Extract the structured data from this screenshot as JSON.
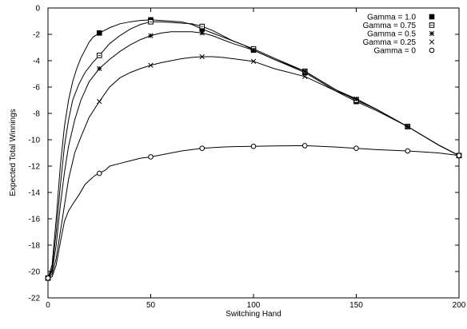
{
  "chart_data": {
    "type": "line",
    "xlabel": "Switching Hand",
    "ylabel": "Expected Total Winnings",
    "xlim": [
      0,
      200
    ],
    "ylim": [
      -22,
      0
    ],
    "x_ticks": [
      0,
      50,
      100,
      150,
      200
    ],
    "y_ticks": [
      0,
      -2,
      -4,
      -6,
      -8,
      -10,
      -12,
      -14,
      -16,
      -18,
      -20,
      -22
    ],
    "grid": false,
    "legend_position": "top-right",
    "series": [
      {
        "name": "Gamma = 1.0",
        "marker": "filled-square",
        "line": [
          [
            0,
            -20.5
          ],
          [
            2,
            -19.5
          ],
          [
            4,
            -16
          ],
          [
            6,
            -12
          ],
          [
            8,
            -9
          ],
          [
            10,
            -7
          ],
          [
            12,
            -5.6
          ],
          [
            14,
            -4.6
          ],
          [
            16,
            -3.8
          ],
          [
            18,
            -3.2
          ],
          [
            20,
            -2.6
          ],
          [
            22,
            -2.2
          ],
          [
            25,
            -1.9
          ],
          [
            30,
            -1.5
          ],
          [
            35,
            -1.2
          ],
          [
            40,
            -1.05
          ],
          [
            45,
            -0.95
          ],
          [
            50,
            -0.9
          ],
          [
            55,
            -0.95
          ],
          [
            60,
            -1.0
          ],
          [
            65,
            -1.05
          ],
          [
            70,
            -1.25
          ],
          [
            75,
            -1.6
          ],
          [
            80,
            -1.9
          ],
          [
            85,
            -2.2
          ],
          [
            90,
            -2.5
          ],
          [
            95,
            -2.8
          ],
          [
            100,
            -3.2
          ],
          [
            110,
            -3.9
          ],
          [
            125,
            -4.9
          ],
          [
            140,
            -6.3
          ],
          [
            150,
            -7.1
          ],
          [
            160,
            -7.8
          ],
          [
            175,
            -9.0
          ],
          [
            190,
            -10.4
          ],
          [
            200,
            -11.2
          ]
        ],
        "markers": [
          [
            0,
            -20.5
          ],
          [
            25,
            -1.9
          ],
          [
            50,
            -0.9
          ],
          [
            75,
            -1.6
          ],
          [
            100,
            -3.2
          ],
          [
            125,
            -4.9
          ],
          [
            150,
            -7.1
          ],
          [
            175,
            -9.0
          ],
          [
            200,
            -11.2
          ]
        ]
      },
      {
        "name": "Gamma = 0.75",
        "marker": "open-square",
        "line": [
          [
            0,
            -20.5
          ],
          [
            2,
            -19.8
          ],
          [
            4,
            -17
          ],
          [
            6,
            -13.5
          ],
          [
            8,
            -10.5
          ],
          [
            10,
            -8.5
          ],
          [
            12,
            -7
          ],
          [
            15,
            -5.8
          ],
          [
            18,
            -4.9
          ],
          [
            22,
            -4.1
          ],
          [
            25,
            -3.6
          ],
          [
            30,
            -2.7
          ],
          [
            35,
            -2.1
          ],
          [
            40,
            -1.6
          ],
          [
            45,
            -1.25
          ],
          [
            50,
            -1.05
          ],
          [
            55,
            -1.05
          ],
          [
            60,
            -1.1
          ],
          [
            65,
            -1.15
          ],
          [
            70,
            -1.2
          ],
          [
            75,
            -1.4
          ],
          [
            80,
            -1.7
          ],
          [
            85,
            -2.1
          ],
          [
            90,
            -2.5
          ],
          [
            100,
            -3.1
          ],
          [
            110,
            -3.8
          ],
          [
            125,
            -4.8
          ],
          [
            140,
            -6.2
          ],
          [
            150,
            -7.0
          ],
          [
            160,
            -7.7
          ],
          [
            175,
            -9.0
          ],
          [
            190,
            -10.4
          ],
          [
            200,
            -11.2
          ]
        ],
        "markers": [
          [
            0,
            -20.5
          ],
          [
            25,
            -3.6
          ],
          [
            50,
            -1.05
          ],
          [
            75,
            -1.4
          ],
          [
            100,
            -3.1
          ],
          [
            125,
            -4.8
          ],
          [
            150,
            -7.0
          ],
          [
            175,
            -9.0
          ],
          [
            200,
            -11.2
          ]
        ]
      },
      {
        "name": "Gamma = 0.5",
        "marker": "asterisk",
        "line": [
          [
            0,
            -20.5
          ],
          [
            2,
            -20
          ],
          [
            4,
            -18
          ],
          [
            6,
            -15
          ],
          [
            8,
            -12.5
          ],
          [
            10,
            -10.5
          ],
          [
            13,
            -8.5
          ],
          [
            16,
            -7
          ],
          [
            20,
            -5.6
          ],
          [
            25,
            -4.6
          ],
          [
            30,
            -3.9
          ],
          [
            35,
            -3.3
          ],
          [
            40,
            -2.8
          ],
          [
            45,
            -2.4
          ],
          [
            50,
            -2.1
          ],
          [
            55,
            -1.9
          ],
          [
            60,
            -1.8
          ],
          [
            65,
            -1.8
          ],
          [
            70,
            -1.8
          ],
          [
            75,
            -1.9
          ],
          [
            80,
            -2.1
          ],
          [
            85,
            -2.4
          ],
          [
            90,
            -2.7
          ],
          [
            100,
            -3.2
          ],
          [
            110,
            -3.9
          ],
          [
            125,
            -4.8
          ],
          [
            140,
            -6.2
          ],
          [
            150,
            -6.9
          ],
          [
            160,
            -7.7
          ],
          [
            175,
            -9.0
          ],
          [
            190,
            -10.4
          ],
          [
            200,
            -11.2
          ]
        ],
        "markers": [
          [
            0,
            -20.5
          ],
          [
            25,
            -4.6
          ],
          [
            50,
            -2.1
          ],
          [
            75,
            -1.9
          ],
          [
            100,
            -3.2
          ],
          [
            125,
            -4.8
          ],
          [
            150,
            -6.9
          ],
          [
            175,
            -9.0
          ],
          [
            200,
            -11.2
          ]
        ]
      },
      {
        "name": "Gamma = 0.25",
        "marker": "cross",
        "line": [
          [
            0,
            -20.5
          ],
          [
            2,
            -20.2
          ],
          [
            4,
            -19
          ],
          [
            6,
            -17
          ],
          [
            8,
            -15
          ],
          [
            10,
            -13
          ],
          [
            13,
            -11
          ],
          [
            16,
            -9.8
          ],
          [
            20,
            -8.3
          ],
          [
            25,
            -7.1
          ],
          [
            30,
            -6.0
          ],
          [
            35,
            -5.3
          ],
          [
            40,
            -4.9
          ],
          [
            45,
            -4.6
          ],
          [
            50,
            -4.35
          ],
          [
            55,
            -4.15
          ],
          [
            60,
            -4.0
          ],
          [
            65,
            -3.85
          ],
          [
            70,
            -3.75
          ],
          [
            75,
            -3.7
          ],
          [
            80,
            -3.7
          ],
          [
            85,
            -3.75
          ],
          [
            90,
            -3.85
          ],
          [
            100,
            -4.05
          ],
          [
            110,
            -4.6
          ],
          [
            125,
            -5.2
          ],
          [
            140,
            -6.3
          ],
          [
            150,
            -6.9
          ],
          [
            160,
            -7.7
          ],
          [
            175,
            -9.0
          ],
          [
            190,
            -10.4
          ],
          [
            200,
            -11.2
          ]
        ],
        "markers": [
          [
            0,
            -20.5
          ],
          [
            25,
            -7.1
          ],
          [
            50,
            -4.35
          ],
          [
            75,
            -3.7
          ],
          [
            100,
            -4.05
          ],
          [
            125,
            -5.2
          ],
          [
            150,
            -6.9
          ],
          [
            175,
            -9.0
          ],
          [
            200,
            -11.2
          ]
        ]
      },
      {
        "name": "Gamma = 0",
        "marker": "open-circle",
        "line": [
          [
            0,
            -20.5
          ],
          [
            2,
            -20.4
          ],
          [
            4,
            -19.5
          ],
          [
            6,
            -17.8
          ],
          [
            8,
            -16.2
          ],
          [
            10,
            -15.4
          ],
          [
            12,
            -14.9
          ],
          [
            15,
            -14.2
          ],
          [
            18,
            -13.4
          ],
          [
            20,
            -13.1
          ],
          [
            23,
            -12.7
          ],
          [
            25,
            -12.55
          ],
          [
            28,
            -12.3
          ],
          [
            30,
            -12.0
          ],
          [
            35,
            -11.8
          ],
          [
            40,
            -11.6
          ],
          [
            45,
            -11.4
          ],
          [
            50,
            -11.3
          ],
          [
            55,
            -11.15
          ],
          [
            60,
            -11.0
          ],
          [
            65,
            -10.85
          ],
          [
            70,
            -10.75
          ],
          [
            75,
            -10.65
          ],
          [
            80,
            -10.6
          ],
          [
            85,
            -10.55
          ],
          [
            90,
            -10.52
          ],
          [
            100,
            -10.5
          ],
          [
            110,
            -10.47
          ],
          [
            125,
            -10.45
          ],
          [
            140,
            -10.55
          ],
          [
            150,
            -10.65
          ],
          [
            160,
            -10.75
          ],
          [
            175,
            -10.85
          ],
          [
            190,
            -11.0
          ],
          [
            200,
            -11.2
          ]
        ],
        "markers": [
          [
            0,
            -20.5
          ],
          [
            25,
            -12.55
          ],
          [
            50,
            -11.3
          ],
          [
            75,
            -10.65
          ],
          [
            100,
            -10.5
          ],
          [
            125,
            -10.45
          ],
          [
            150,
            -10.65
          ],
          [
            175,
            -10.85
          ],
          [
            200,
            -11.2
          ]
        ]
      }
    ]
  }
}
